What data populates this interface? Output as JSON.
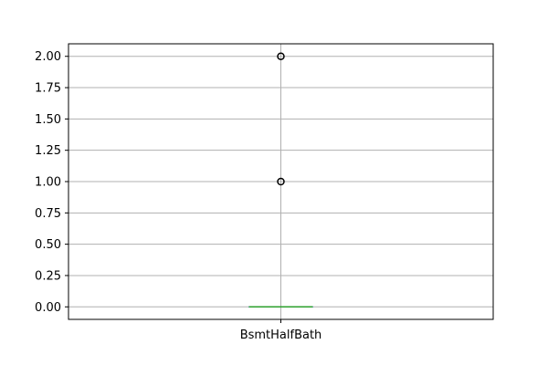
{
  "chart_data": {
    "type": "box",
    "title": "",
    "xlabel": "",
    "ylabel": "",
    "categories": [
      "BsmtHalfBath"
    ],
    "ylim": [
      -0.1,
      2.1
    ],
    "yticks": [
      0.0,
      0.25,
      0.5,
      0.75,
      1.0,
      1.25,
      1.5,
      1.75,
      2.0
    ],
    "ytick_labels": [
      "0.00",
      "0.25",
      "0.50",
      "0.75",
      "1.00",
      "1.25",
      "1.50",
      "1.75",
      "2.00"
    ],
    "grid": true,
    "boxes": [
      {
        "category": "BsmtHalfBath",
        "min": 0,
        "q1": 0,
        "median": 0,
        "q3": 0,
        "max": 0,
        "outliers": [
          1,
          2
        ]
      }
    ],
    "colors": {
      "box": "#1f77b4",
      "median": "#2ca02c",
      "grid": "#b0b0b0",
      "outlier_edge": "#000000"
    }
  }
}
